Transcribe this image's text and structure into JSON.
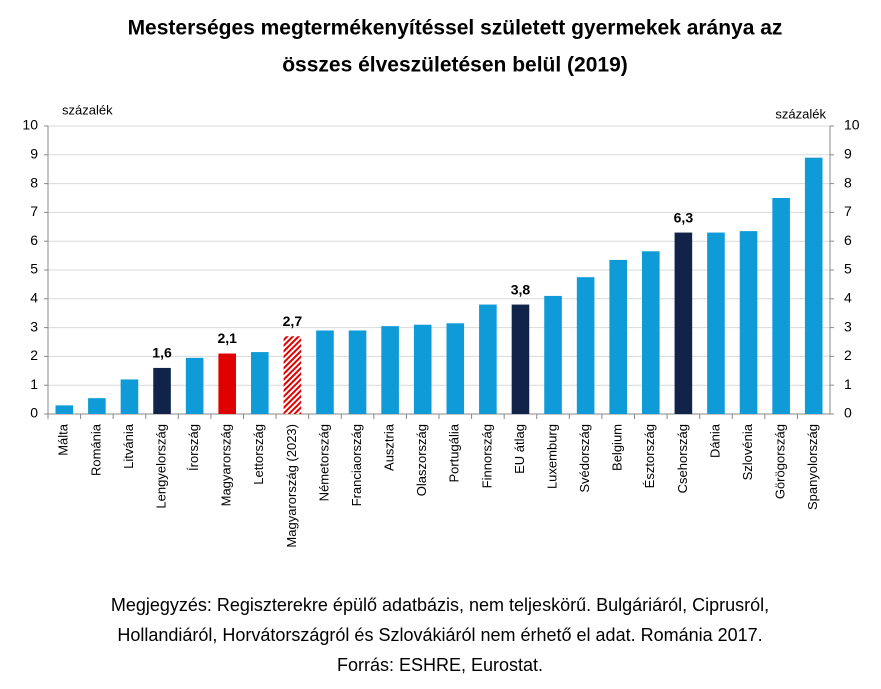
{
  "chart_data": {
    "type": "bar",
    "title": [
      "Mesterséges megtermékenyítéssel született gyermekek aránya az",
      "összes élveszületésen belül (2019)"
    ],
    "ylabel": "százalék",
    "y2label": "százalék",
    "categories": [
      "Málta",
      "Románia",
      "Litvánia",
      "Lengyelország",
      "Írország",
      "Magyarország",
      "Lettország",
      "Magyarország (2023)",
      "Németország",
      "Franciaország",
      "Ausztria",
      "Olaszország",
      "Portugália",
      "Finnország",
      "EU átlag",
      "Luxemburg",
      "Svédország",
      "Belgium",
      "Észtország",
      "Csehország",
      "Dánia",
      "Szlovénia",
      "Görögország",
      "Spanyolország"
    ],
    "values": [
      0.3,
      0.55,
      1.2,
      1.6,
      1.95,
      2.1,
      2.15,
      2.7,
      2.9,
      2.9,
      3.05,
      3.1,
      3.15,
      3.8,
      3.8,
      4.1,
      4.75,
      5.35,
      5.65,
      6.3,
      6.3,
      6.35,
      7.5,
      8.9
    ],
    "value_labels": [
      null,
      null,
      null,
      "1,6",
      null,
      "2,1",
      null,
      "2,7",
      null,
      null,
      null,
      null,
      null,
      null,
      "3,8",
      null,
      null,
      null,
      null,
      "6,3",
      null,
      null,
      null,
      null
    ],
    "colors": [
      "#0f9ad8",
      "#0f9ad8",
      "#0f9ad8",
      "#12234a",
      "#0f9ad8",
      "#e00000",
      "#0f9ad8",
      "#e00000",
      "#0f9ad8",
      "#0f9ad8",
      "#0f9ad8",
      "#0f9ad8",
      "#0f9ad8",
      "#0f9ad8",
      "#12234a",
      "#0f9ad8",
      "#0f9ad8",
      "#0f9ad8",
      "#0f9ad8",
      "#12234a",
      "#0f9ad8",
      "#0f9ad8",
      "#0f9ad8",
      "#0f9ad8"
    ],
    "hatched": [
      false,
      false,
      false,
      false,
      false,
      false,
      false,
      true,
      false,
      false,
      false,
      false,
      false,
      false,
      false,
      false,
      false,
      false,
      false,
      false,
      false,
      false,
      false,
      false
    ],
    "ylim": [
      0,
      10
    ],
    "yticks": [
      0,
      1,
      2,
      3,
      4,
      5,
      6,
      7,
      8,
      9,
      10
    ],
    "y2lim": [
      0,
      10
    ],
    "y2ticks": [
      0,
      1,
      2,
      3,
      4,
      5,
      6,
      7,
      8,
      9,
      10
    ],
    "grid": true,
    "note": [
      "Megjegyzés: Regiszterekre épülő adatbázis, nem teljeskörű. Bulgáriáról, Ciprusról,",
      "Hollandiáról, Horvátországról és Szlovákiáról nem érhető el adat. Románia 2017.",
      "Forrás: ESHRE, Eurostat."
    ]
  }
}
